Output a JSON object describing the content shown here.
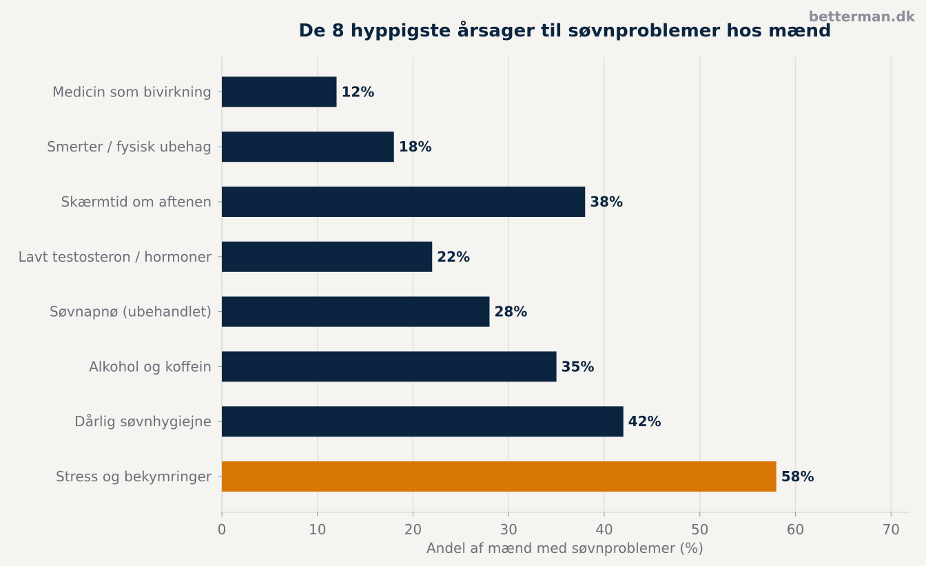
{
  "watermark": "betterman.dk",
  "chart_data": {
    "type": "bar",
    "orientation": "horizontal",
    "title": "De 8 hyppigste årsager til søvnproblemer hos mænd",
    "xlabel": "Andel af mænd med søvnproblemer (%)",
    "ylabel": "",
    "categories": [
      "Stress og bekymringer",
      "Dårlig søvnhygiejne",
      "Alkohol og koffein",
      "Søvnapnø (ubehandlet)",
      "Lavt testosteron / hormoner",
      "Skærmtid om aftenen",
      "Smerter / fysisk ubehag",
      "Medicin som bivirkning"
    ],
    "values": [
      58,
      42,
      35,
      28,
      22,
      38,
      18,
      12
    ],
    "value_labels": [
      "58%",
      "42%",
      "35%",
      "28%",
      "22%",
      "38%",
      "18%",
      "12%"
    ],
    "xlim": [
      0,
      72
    ],
    "xticks": [
      0,
      10,
      20,
      30,
      40,
      50,
      60,
      70
    ],
    "xtick_labels": [
      "0",
      "10",
      "20",
      "30",
      "40",
      "50",
      "60",
      "70"
    ],
    "grid": "vertical",
    "highlight_index": 0,
    "colors": {
      "bar": "#0b2540",
      "highlight": "#d97706",
      "grid": "#e2e0d8",
      "background": "#f5f4f0"
    }
  }
}
